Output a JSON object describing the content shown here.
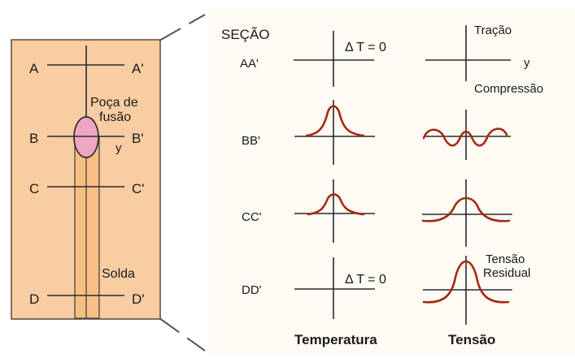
{
  "plate": {
    "sections": [
      {
        "left": "A",
        "right": "A'"
      },
      {
        "left": "B",
        "right": "B'"
      },
      {
        "left": "C",
        "right": "C'"
      },
      {
        "left": "D",
        "right": "D'"
      }
    ],
    "pool_label_line1": "Poça de",
    "pool_label_line2": "fusão",
    "y_axis_label": "y",
    "weld_label": "Solda"
  },
  "panel": {
    "section_header": "SEÇÃO",
    "rows": [
      "AA'",
      "BB'",
      "CC'",
      "DD'"
    ],
    "delta_t_label": "Δ T = 0",
    "traction_label": "Tração",
    "compression_label": "Compressão",
    "y_label": "y",
    "residual_line1": "Tensão",
    "residual_line2": "Residual",
    "temperature_heading": "Temperatura",
    "stress_heading": "Tensão"
  },
  "colors": {
    "plate_fill": "#f8cda2",
    "bead_fill": "#f8bf83",
    "pool_fill": "#f0a6c3",
    "curve": "#a32a12",
    "panel_bg": "#fefaf4"
  }
}
